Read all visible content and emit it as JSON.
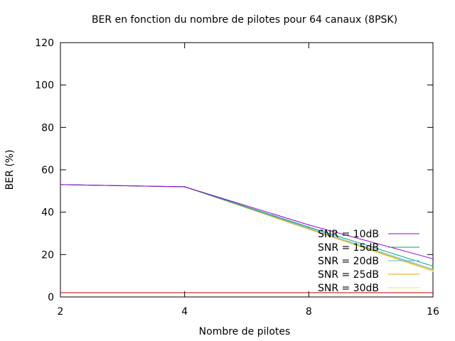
{
  "chart_data": {
    "type": "line",
    "title": "BER en fonction du nombre de pilotes pour 64 canaux (8PSK)",
    "xlabel": "Nombre de pilotes",
    "ylabel": "BER (%)",
    "x_scale": "log2",
    "xlim": [
      2,
      16
    ],
    "ylim": [
      0,
      120
    ],
    "x_ticks": [
      2,
      4,
      8,
      16
    ],
    "y_ticks": [
      0,
      20,
      40,
      60,
      80,
      100,
      120
    ],
    "x": [
      2,
      4,
      8,
      16
    ],
    "grid": false,
    "legend_position": "bottom-right",
    "series": [
      {
        "name": "SNR = 10dB",
        "color": "#9400d3",
        "values": [
          53,
          52,
          34,
          18
        ]
      },
      {
        "name": "SNR = 15dB",
        "color": "#009e73",
        "values": [
          53,
          52,
          33,
          14.5
        ]
      },
      {
        "name": "SNR = 20dB",
        "color": "#56b4e9",
        "values": [
          53,
          52,
          32.5,
          13
        ]
      },
      {
        "name": "SNR = 25dB",
        "color": "#e69f00",
        "values": [
          53,
          52,
          32,
          12.5
        ]
      },
      {
        "name": "SNR = 30dB",
        "color": "#f0e442",
        "values": [
          53,
          52,
          32,
          12
        ]
      }
    ],
    "baseline_color": "#c00000",
    "baseline_value": 2
  }
}
